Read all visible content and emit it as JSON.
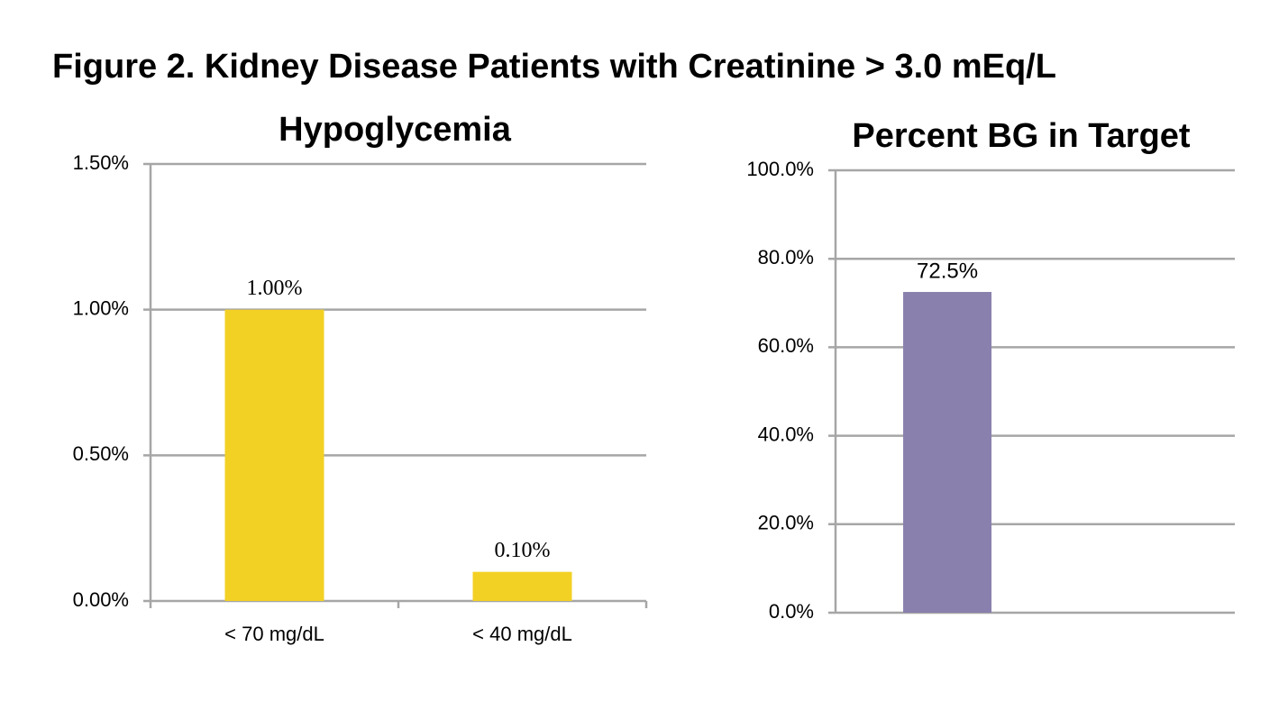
{
  "title": "Figure 2. Kidney Disease Patients with Creatinine > 3.0 mEq/L",
  "chart_data": [
    {
      "type": "bar",
      "title": "Hypoglycemia",
      "categories": [
        "< 70 mg/dL",
        "< 40 mg/dL"
      ],
      "values": [
        1.0,
        0.1
      ],
      "value_labels": [
        "1.00%",
        "0.10%"
      ],
      "color": "#f3d024",
      "ylim": [
        0,
        1.5
      ],
      "yticks": [
        {
          "value": 0,
          "label": "0.00%"
        },
        {
          "value": 0.5,
          "label": "0.50%"
        },
        {
          "value": 1,
          "label": "1.00%"
        },
        {
          "value": 1.5,
          "label": "1.50%"
        }
      ],
      "grid": true
    },
    {
      "type": "bar",
      "title": "Percent BG in Target",
      "categories": [
        null
      ],
      "values": [
        72.5
      ],
      "value_labels": [
        "72.5%"
      ],
      "color": "#8a80ad",
      "ylim": [
        0,
        100
      ],
      "yticks": [
        {
          "value": 0,
          "label": "0.0%"
        },
        {
          "value": 20,
          "label": "20.0%"
        },
        {
          "value": 40,
          "label": "40.0%"
        },
        {
          "value": 60,
          "label": "60.0%"
        },
        {
          "value": 80,
          "label": "80.0%"
        },
        {
          "value": 100,
          "label": "100.0%"
        }
      ],
      "grid": true
    }
  ]
}
